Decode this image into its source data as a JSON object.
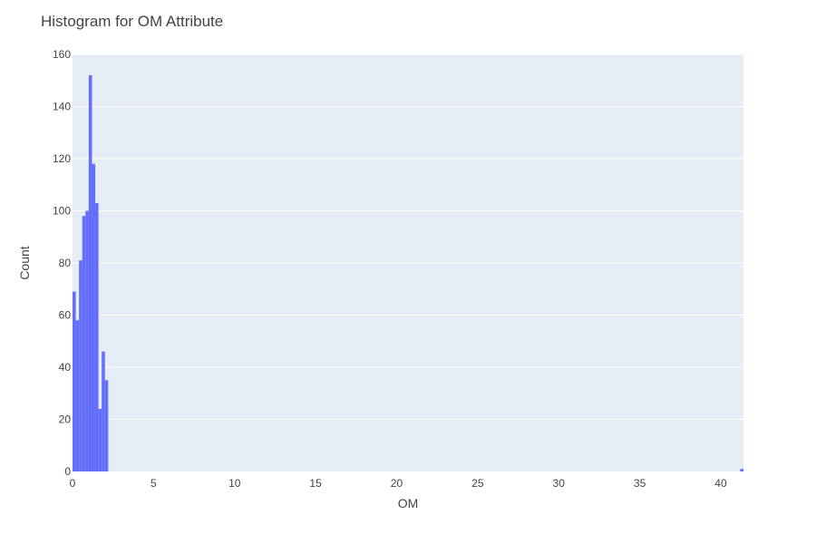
{
  "chart_data": {
    "type": "bar",
    "title": "Histogram for OM Attribute",
    "xlabel": "OM",
    "ylabel": "Count",
    "bin_width": 0.2,
    "xlim": [
      0,
      41.4
    ],
    "ylim": [
      0,
      160
    ],
    "x_ticks": [
      0,
      5,
      10,
      15,
      20,
      25,
      30,
      35,
      40
    ],
    "y_ticks": [
      0,
      20,
      40,
      60,
      80,
      100,
      120,
      140,
      160
    ],
    "bins": [
      {
        "x0": 0.0,
        "count": 69
      },
      {
        "x0": 0.2,
        "count": 58
      },
      {
        "x0": 0.4,
        "count": 81
      },
      {
        "x0": 0.6,
        "count": 98
      },
      {
        "x0": 0.8,
        "count": 100
      },
      {
        "x0": 1.0,
        "count": 152
      },
      {
        "x0": 1.2,
        "count": 118
      },
      {
        "x0": 1.4,
        "count": 103
      },
      {
        "x0": 1.6,
        "count": 24
      },
      {
        "x0": 1.8,
        "count": 46
      },
      {
        "x0": 2.0,
        "count": 35
      },
      {
        "x0": 41.2,
        "count": 1
      }
    ],
    "bar_color": "#636efa",
    "plot_bg": "#e5ecf6",
    "grid": true
  }
}
